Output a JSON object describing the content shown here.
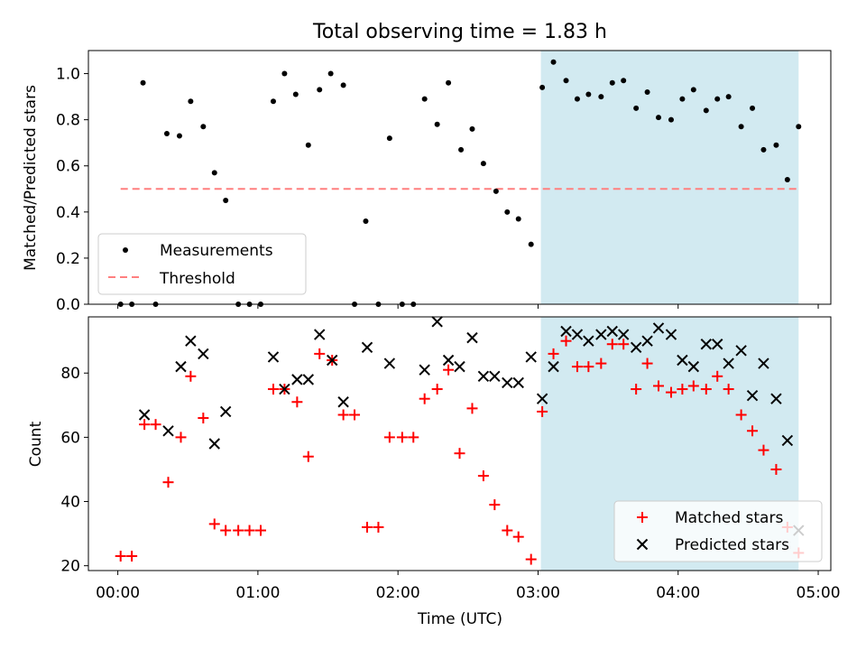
{
  "chart_data": [
    {
      "type": "scatter",
      "title": "Total observing time = 1.83 h",
      "ylabel": "Matched/Predicted stars",
      "xlabel": "",
      "xlim_hours": [
        -0.21,
        5.09
      ],
      "ylim": [
        0,
        1.1
      ],
      "yticks": [
        0.0,
        0.2,
        0.4,
        0.6,
        0.8,
        1.0
      ],
      "ytick_labels": [
        "0.0",
        "0.2",
        "0.4",
        "0.6",
        "0.8",
        "1.0"
      ],
      "grid": false,
      "legend_position": "lower-left",
      "highlight_span_hours": [
        3.02,
        4.86
      ],
      "highlight_color": "#add8e6",
      "threshold": {
        "name": "Threshold",
        "value": 0.5,
        "x_range_hours": [
          0.02,
          4.86
        ],
        "color": "#ff7f7f",
        "style": "dashed"
      },
      "series": [
        {
          "name": "Measurements",
          "marker": "dot",
          "color": "#000000",
          "x_hours": [
            0.02,
            0.1,
            0.18,
            0.27,
            0.35,
            0.44,
            0.52,
            0.61,
            0.69,
            0.77,
            0.86,
            0.94,
            1.02,
            1.11,
            1.19,
            1.27,
            1.36,
            1.44,
            1.52,
            1.61,
            1.69,
            1.77,
            1.86,
            1.94,
            2.03,
            2.11,
            2.19,
            2.28,
            2.36,
            2.45,
            2.53,
            2.61,
            2.7,
            2.78,
            2.86,
            2.95,
            3.03,
            3.11,
            3.2,
            3.28,
            3.36,
            3.45,
            3.53,
            3.61,
            3.7,
            3.78,
            3.86,
            3.95,
            4.03,
            4.11,
            4.2,
            4.28,
            4.36,
            4.45,
            4.53,
            4.61,
            4.7,
            4.78,
            4.86
          ],
          "y": [
            0.0,
            0.0,
            0.96,
            0.0,
            0.74,
            0.73,
            0.88,
            0.77,
            0.57,
            0.45,
            0.0,
            0.0,
            0.0,
            0.88,
            1.0,
            0.91,
            0.69,
            0.93,
            1.0,
            0.95,
            0.0,
            0.36,
            0.0,
            0.72,
            0.0,
            0.0,
            0.89,
            0.78,
            0.96,
            0.67,
            0.76,
            0.61,
            0.49,
            0.4,
            0.37,
            0.26,
            0.94,
            1.05,
            0.97,
            0.89,
            0.91,
            0.9,
            0.96,
            0.97,
            0.85,
            0.92,
            0.81,
            0.8,
            0.89,
            0.93,
            0.84,
            0.89,
            0.9,
            0.77,
            0.85,
            0.67,
            0.69,
            0.54,
            0.77
          ]
        }
      ]
    },
    {
      "type": "scatter",
      "title": "",
      "ylabel": "Count",
      "xlabel": "Time (UTC)",
      "xlim_hours": [
        -0.21,
        5.09
      ],
      "xticks_hours": [
        0,
        1,
        2,
        3,
        4,
        5
      ],
      "xtick_labels": [
        "00:00",
        "01:00",
        "02:00",
        "03:00",
        "04:00",
        "05:00"
      ],
      "ylim": [
        18.5,
        97.5
      ],
      "yticks": [
        20,
        40,
        60,
        80
      ],
      "ytick_labels": [
        "20",
        "40",
        "60",
        "80"
      ],
      "grid": false,
      "legend_position": "lower-right",
      "highlight_span_hours": [
        3.02,
        4.86
      ],
      "highlight_color": "#add8e6",
      "series": [
        {
          "name": "Matched stars",
          "marker": "plus",
          "color": "#ff0000",
          "x_hours": [
            0.02,
            0.1,
            0.19,
            0.27,
            0.36,
            0.45,
            0.52,
            0.61,
            0.69,
            0.77,
            0.86,
            0.94,
            1.02,
            1.11,
            1.19,
            1.28,
            1.36,
            1.44,
            1.53,
            1.61,
            1.69,
            1.78,
            1.86,
            1.94,
            2.03,
            2.11,
            2.19,
            2.28,
            2.36,
            2.44,
            2.53,
            2.61,
            2.69,
            2.78,
            2.86,
            2.95,
            3.03,
            3.11,
            3.2,
            3.28,
            3.36,
            3.45,
            3.53,
            3.61,
            3.7,
            3.78,
            3.86,
            3.95,
            4.03,
            4.11,
            4.2,
            4.28,
            4.36,
            4.45,
            4.53,
            4.61,
            4.7,
            4.78,
            4.86
          ],
          "y": [
            23,
            23,
            64,
            64,
            46,
            60,
            79,
            66,
            33,
            31,
            31,
            31,
            31,
            75,
            75,
            71,
            54,
            86,
            84,
            67,
            67,
            32,
            32,
            60,
            60,
            60,
            72,
            75,
            81,
            55,
            69,
            48,
            39,
            31,
            29,
            22,
            68,
            86,
            90,
            82,
            82,
            83,
            89,
            89,
            75,
            83,
            76,
            74,
            75,
            76,
            75,
            79,
            75,
            67,
            62,
            56,
            50,
            32,
            24
          ]
        },
        {
          "name": "Predicted stars",
          "marker": "x",
          "color": "#000000",
          "x_hours": [
            0.19,
            0.36,
            0.45,
            0.52,
            0.61,
            0.69,
            0.77,
            1.11,
            1.19,
            1.28,
            1.36,
            1.44,
            1.53,
            1.61,
            1.78,
            1.94,
            2.19,
            2.28,
            2.36,
            2.44,
            2.53,
            2.61,
            2.69,
            2.78,
            2.86,
            2.95,
            3.03,
            3.11,
            3.2,
            3.28,
            3.36,
            3.45,
            3.53,
            3.61,
            3.7,
            3.78,
            3.86,
            3.95,
            4.03,
            4.11,
            4.2,
            4.28,
            4.36,
            4.45,
            4.53,
            4.61,
            4.7,
            4.78,
            4.86
          ],
          "y": [
            67,
            62,
            82,
            90,
            86,
            58,
            68,
            85,
            75,
            78,
            78,
            92,
            84,
            71,
            88,
            83,
            81,
            96,
            84,
            82,
            91,
            79,
            79,
            77,
            77,
            85,
            72,
            82,
            93,
            92,
            90,
            92,
            93,
            92,
            88,
            90,
            94,
            92,
            84,
            82,
            89,
            89,
            83,
            87,
            73,
            83,
            72,
            59,
            31
          ]
        }
      ]
    }
  ]
}
